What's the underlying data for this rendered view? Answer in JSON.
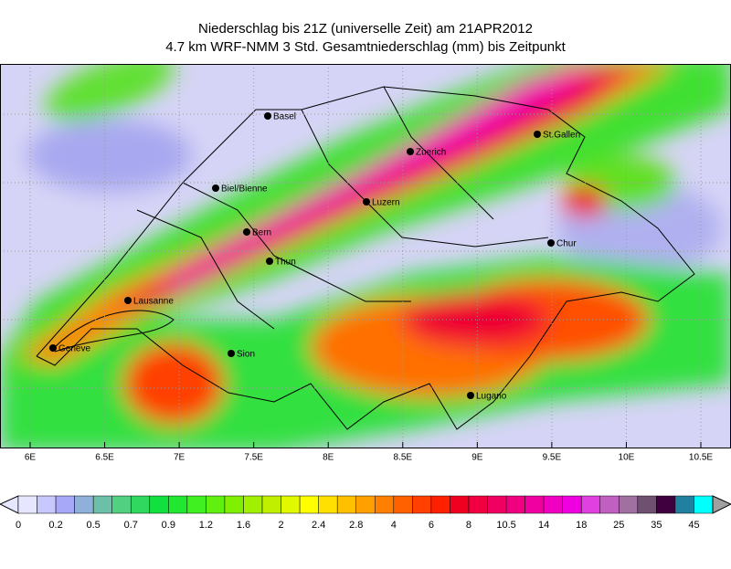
{
  "header": {
    "title": "Niederschlag bis 21Z (universelle Zeit) am 21APR2012",
    "subtitle": "4.7 km WRF-NMM 3 Std. Gesamtniederschlag (mm) bis Zeitpunkt"
  },
  "map": {
    "x_ticks": [
      {
        "value": 6,
        "label": "6E"
      },
      {
        "value": 6.5,
        "label": "6.5E"
      },
      {
        "value": 7,
        "label": "7E"
      },
      {
        "value": 7.5,
        "label": "7.5E"
      },
      {
        "value": 8,
        "label": "8E"
      },
      {
        "value": 8.5,
        "label": "8.5E"
      },
      {
        "value": 9,
        "label": "9E"
      },
      {
        "value": 9.5,
        "label": "9.5E"
      },
      {
        "value": 10,
        "label": "10E"
      },
      {
        "value": 10.5,
        "label": "10.5E"
      }
    ],
    "cities": [
      "Basel",
      "Zuerich",
      "St.Gallen",
      "Biel/Bienne",
      "Luzern",
      "Bern",
      "Chur",
      "Thun",
      "Lausanne",
      "Geneve",
      "Sion",
      "Lugano"
    ]
  },
  "legend": {
    "labels": [
      "0",
      "0.2",
      "0.5",
      "0.7",
      "0.9",
      "1.2",
      "1.6",
      "2",
      "2.4",
      "2.8",
      "4",
      "6",
      "8",
      "10.5",
      "14",
      "18",
      "25",
      "35",
      "45"
    ],
    "colors": [
      "#e6e6ff",
      "#c8c8ff",
      "#a8a8f8",
      "#8fb0d8",
      "#6cc0a8",
      "#50d080",
      "#30d860",
      "#10e040",
      "#20e830",
      "#40f020",
      "#60f010",
      "#80f000",
      "#a0f000",
      "#c0f000",
      "#e0f800",
      "#ffff00",
      "#ffe000",
      "#ffc000",
      "#ffa000",
      "#ff8000",
      "#ff6000",
      "#ff4000",
      "#ff2000",
      "#f00020",
      "#f00040",
      "#f00060",
      "#f00080",
      "#f000a0",
      "#f000c0",
      "#f000e0",
      "#e040e0",
      "#c060c0",
      "#a070a0",
      "#705070",
      "#400040",
      "#2080a0",
      "#00ffff"
    ]
  }
}
